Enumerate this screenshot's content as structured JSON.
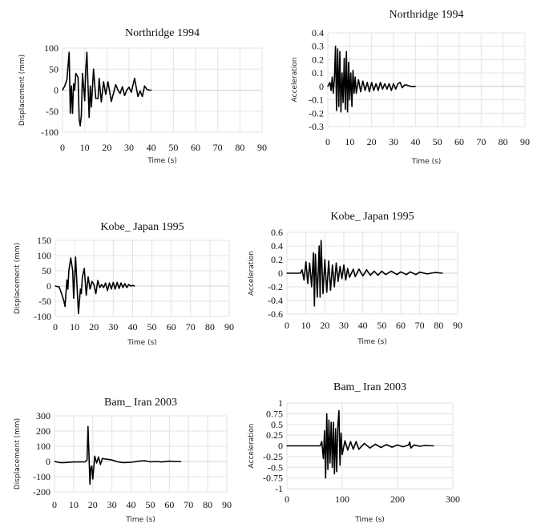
{
  "chart_data": [
    {
      "type": "line",
      "title": "Northridge 1994",
      "xlabel": "Time (s)",
      "ylabel": "Displacement (mm)",
      "xlim": [
        0,
        90
      ],
      "ylim": [
        -100,
        100
      ],
      "xticks": [
        0,
        10,
        20,
        30,
        40,
        50,
        60,
        70,
        80,
        90
      ],
      "yticks": [
        -100,
        -50,
        0,
        50,
        100
      ],
      "grid": true,
      "series_color": "#000000",
      "x": [
        0,
        1,
        2,
        3,
        3.5,
        4,
        4.5,
        5,
        5.5,
        6,
        7,
        7.5,
        8,
        8.5,
        9,
        10,
        10.5,
        11,
        12,
        12.5,
        13,
        14,
        15,
        16,
        16.5,
        17.5,
        18.5,
        19.5,
        20.5,
        22,
        24,
        25,
        26,
        27,
        28,
        29,
        30,
        31,
        32.5,
        34,
        35,
        36,
        37,
        38,
        39,
        40
      ],
      "y": [
        0,
        10,
        25,
        90,
        -55,
        10,
        -55,
        15,
        0,
        40,
        30,
        -70,
        -85,
        -60,
        40,
        -25,
        50,
        90,
        -65,
        10,
        -40,
        50,
        -20,
        -20,
        28,
        -28,
        20,
        -10,
        20,
        -27,
        13,
        0,
        -8,
        8,
        -13,
        0,
        7,
        -5,
        28,
        -15,
        -2,
        -15,
        10,
        2,
        0,
        0
      ]
    },
    {
      "type": "line",
      "title": "Northridge 1994",
      "xlabel": "Time (s)",
      "ylabel": "Acceleration",
      "xlim": [
        0,
        90
      ],
      "ylim": [
        -0.3,
        0.4
      ],
      "xticks": [
        0,
        10,
        20,
        30,
        40,
        50,
        60,
        70,
        80,
        90
      ],
      "yticks": [
        -0.3,
        -0.2,
        -0.1,
        0,
        0.1,
        0.2,
        0.3,
        0.4
      ],
      "grid": true,
      "series_color": "#000000",
      "x": [
        0,
        1,
        1.5,
        2,
        2.5,
        3,
        3.5,
        4,
        4.5,
        5,
        5.5,
        6,
        6.5,
        7,
        7.5,
        8,
        8.5,
        9,
        9.5,
        10,
        10.5,
        11,
        11.5,
        12,
        12.5,
        13,
        14,
        15,
        16,
        17,
        18,
        19,
        20,
        21,
        22,
        23,
        24,
        25,
        26,
        27,
        28,
        29,
        30,
        31,
        32,
        33,
        34,
        35,
        36,
        37,
        38,
        40
      ],
      "y": [
        0,
        0.03,
        -0.03,
        0.07,
        -0.05,
        0.05,
        0.3,
        -0.18,
        0.28,
        -0.15,
        0.26,
        -0.19,
        0.1,
        -0.12,
        0.21,
        -0.17,
        0.26,
        -0.19,
        0.18,
        -0.1,
        0.1,
        -0.15,
        0.12,
        -0.05,
        0.07,
        -0.05,
        0.05,
        -0.04,
        0.04,
        -0.03,
        0.03,
        -0.04,
        0.03,
        -0.03,
        0.02,
        -0.03,
        0.03,
        -0.02,
        0.02,
        -0.02,
        0.02,
        -0.03,
        0.02,
        -0.02,
        0.02,
        0.03,
        -0.01,
        0.01,
        0.01,
        0.005,
        0,
        0
      ]
    },
    {
      "type": "line",
      "title": "Kobe_ Japan 1995",
      "xlabel": "Time (s)",
      "ylabel": "Displacement (mm)",
      "xlim": [
        0,
        90
      ],
      "ylim": [
        -100,
        150
      ],
      "xticks": [
        0,
        10,
        20,
        30,
        40,
        50,
        60,
        70,
        80,
        90
      ],
      "yticks": [
        -100,
        -50,
        0,
        50,
        100,
        150
      ],
      "grid": true,
      "series_color": "#000000",
      "x": [
        0,
        2,
        3,
        4.5,
        5,
        6,
        6.5,
        7,
        8,
        9,
        9.5,
        10.5,
        11.5,
        12,
        13,
        13.5,
        14,
        15,
        16,
        17,
        18,
        19,
        20,
        21,
        22,
        23,
        24,
        25,
        26,
        27,
        28,
        29,
        30,
        31,
        32,
        33,
        34,
        35,
        36,
        37,
        38,
        39,
        40,
        41
      ],
      "y": [
        0,
        -3,
        -20,
        -50,
        -67,
        20,
        -10,
        50,
        92,
        50,
        -40,
        95,
        -30,
        -90,
        -10,
        -25,
        30,
        58,
        -30,
        30,
        -10,
        15,
        5,
        -25,
        18,
        -5,
        5,
        -5,
        10,
        -15,
        10,
        -10,
        12,
        -10,
        12,
        -8,
        10,
        -5,
        8,
        -5,
        5,
        0,
        2,
        0
      ]
    },
    {
      "type": "line",
      "title": "Kobe_ Japan 1995",
      "xlabel": "Time (s)",
      "ylabel": "Acceleration",
      "xlim": [
        0,
        90
      ],
      "ylim": [
        -0.6,
        0.6
      ],
      "xticks": [
        0,
        10,
        20,
        30,
        40,
        50,
        60,
        70,
        80,
        90
      ],
      "yticks": [
        -0.6,
        -0.4,
        -0.2,
        0,
        0.2,
        0.4,
        0.6
      ],
      "grid": true,
      "series_color": "#000000",
      "x": [
        0,
        7,
        8,
        9,
        10,
        11,
        12,
        13,
        14,
        14.5,
        15,
        16,
        17,
        17.5,
        18,
        19,
        20,
        21,
        22,
        23,
        24,
        25,
        26,
        27,
        28,
        29,
        30,
        31,
        32,
        33,
        35,
        36,
        38,
        40,
        42,
        44,
        46,
        48,
        50,
        52,
        55,
        58,
        60,
        63,
        65,
        68,
        70,
        74,
        78,
        82
      ],
      "y": [
        0,
        0,
        0.05,
        -0.1,
        0.17,
        -0.15,
        0.15,
        -0.2,
        0.3,
        -0.48,
        0.28,
        -0.35,
        0.4,
        -0.35,
        0.48,
        -0.3,
        0.2,
        -0.28,
        0.18,
        -0.25,
        0.12,
        -0.2,
        0.15,
        -0.12,
        0.1,
        -0.08,
        0.12,
        -0.1,
        0.07,
        -0.06,
        0.06,
        -0.05,
        0.06,
        -0.04,
        0.05,
        -0.03,
        0.03,
        -0.03,
        0.03,
        -0.02,
        0.03,
        -0.02,
        0.02,
        -0.02,
        0.02,
        -0.02,
        0.015,
        -0.01,
        0.01,
        0
      ]
    },
    {
      "type": "line",
      "title": "Bam_ Iran 2003",
      "xlabel": "Time (s)",
      "ylabel": "Displacement (mm)",
      "xlim": [
        0,
        90
      ],
      "ylim": [
        -200,
        300
      ],
      "xticks": [
        0,
        10,
        20,
        30,
        40,
        50,
        60,
        70,
        80,
        90
      ],
      "yticks": [
        -200,
        -100,
        0,
        100,
        200,
        300
      ],
      "grid": true,
      "series_color": "#000000",
      "x": [
        0,
        3,
        5,
        10,
        16,
        17,
        17.5,
        18,
        18.5,
        19,
        19.5,
        20,
        21,
        22,
        23,
        24,
        25,
        27,
        30,
        33,
        36,
        40,
        44,
        47,
        50,
        53,
        56,
        60,
        63,
        66
      ],
      "y": [
        0,
        -8,
        -8,
        -3,
        -2,
        10,
        230,
        50,
        -150,
        -40,
        -30,
        -115,
        35,
        -10,
        30,
        -20,
        20,
        15,
        10,
        -2,
        -8,
        -5,
        2,
        5,
        -2,
        0,
        -3,
        2,
        0,
        0
      ]
    },
    {
      "type": "line",
      "title": "Bam_ Iran 2003",
      "xlabel": "Time (s)",
      "ylabel": "Acceleration",
      "xlim": [
        0,
        300
      ],
      "ylim": [
        -1,
        1
      ],
      "xticks": [
        0,
        100,
        200,
        300
      ],
      "yticks": [
        -1,
        -0.75,
        -0.5,
        -0.25,
        0,
        0.25,
        0.5,
        0.75,
        1
      ],
      "grid": true,
      "series_color": "#000000",
      "x": [
        0,
        60,
        63,
        66,
        68,
        70,
        72,
        74,
        76,
        78,
        80,
        82,
        84,
        86,
        88,
        90,
        92,
        94,
        96,
        98,
        100,
        105,
        110,
        115,
        120,
        125,
        130,
        140,
        150,
        160,
        170,
        180,
        190,
        200,
        210,
        220,
        222,
        224,
        230,
        240,
        250,
        265
      ],
      "y": [
        0,
        0,
        0.1,
        -0.3,
        0.35,
        -0.75,
        0.75,
        -0.55,
        0.6,
        -0.4,
        0.55,
        -0.5,
        0.55,
        -0.65,
        0.4,
        -0.6,
        0.45,
        0.82,
        -0.45,
        0.3,
        -0.2,
        0.12,
        -0.1,
        0.1,
        -0.08,
        0.1,
        -0.08,
        0.06,
        -0.05,
        0.04,
        -0.04,
        0.03,
        -0.03,
        0.02,
        -0.02,
        0.02,
        0.09,
        -0.05,
        0.02,
        -0.01,
        0.01,
        0
      ]
    }
  ]
}
